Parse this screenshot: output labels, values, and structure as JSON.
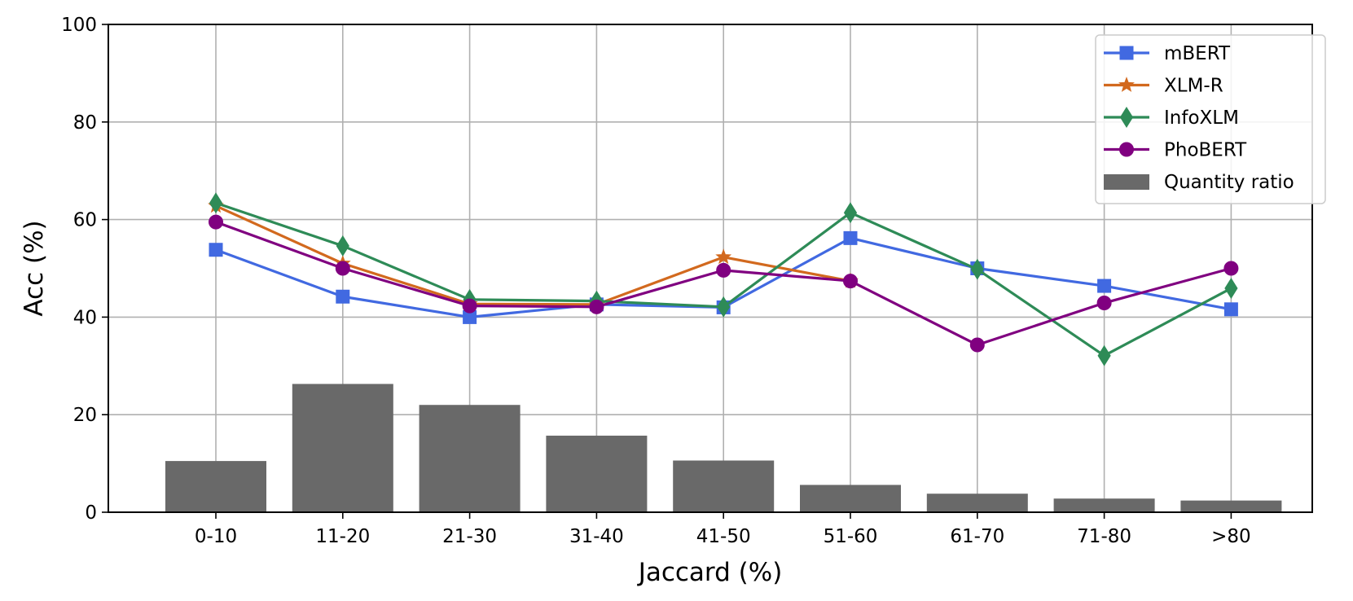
{
  "chart_data": {
    "type": "bar",
    "categories": [
      "0-10",
      "11-20",
      "21-30",
      "31-40",
      "41-50",
      "51-60",
      "61-70",
      "71-80",
      ">80"
    ],
    "xlabel": "Jaccard (%)",
    "ylabel": "Acc (%)",
    "ylim": [
      0,
      100
    ],
    "yticks": [
      0,
      20,
      40,
      60,
      80,
      100
    ],
    "grid": true,
    "legend_position": "top-right",
    "bars": {
      "name": "Quantity ratio",
      "color": "#696969",
      "values": [
        10.5,
        26.3,
        22.0,
        15.7,
        10.6,
        5.6,
        3.8,
        2.8,
        2.4
      ]
    },
    "series": [
      {
        "name": "mBERT",
        "color": "#4169E1",
        "marker": "square",
        "values": [
          53.8,
          44.2,
          40.0,
          42.6,
          42.0,
          56.2,
          50.0,
          46.4,
          41.6
        ]
      },
      {
        "name": "XLM-R",
        "color": "#D2691E",
        "marker": "star",
        "values": [
          62.8,
          51.0,
          42.7,
          42.6,
          52.3,
          47.4,
          null,
          null,
          null
        ]
      },
      {
        "name": "InfoXLM",
        "color": "#2E8B57",
        "marker": "diamond",
        "values": [
          63.4,
          54.6,
          43.6,
          43.3,
          42.1,
          61.4,
          49.8,
          32.1,
          45.9
        ]
      },
      {
        "name": "PhoBERT",
        "color": "#800080",
        "marker": "circle",
        "values": [
          59.5,
          50.0,
          42.3,
          42.1,
          49.6,
          47.4,
          34.3,
          42.9,
          50.0
        ]
      }
    ]
  }
}
